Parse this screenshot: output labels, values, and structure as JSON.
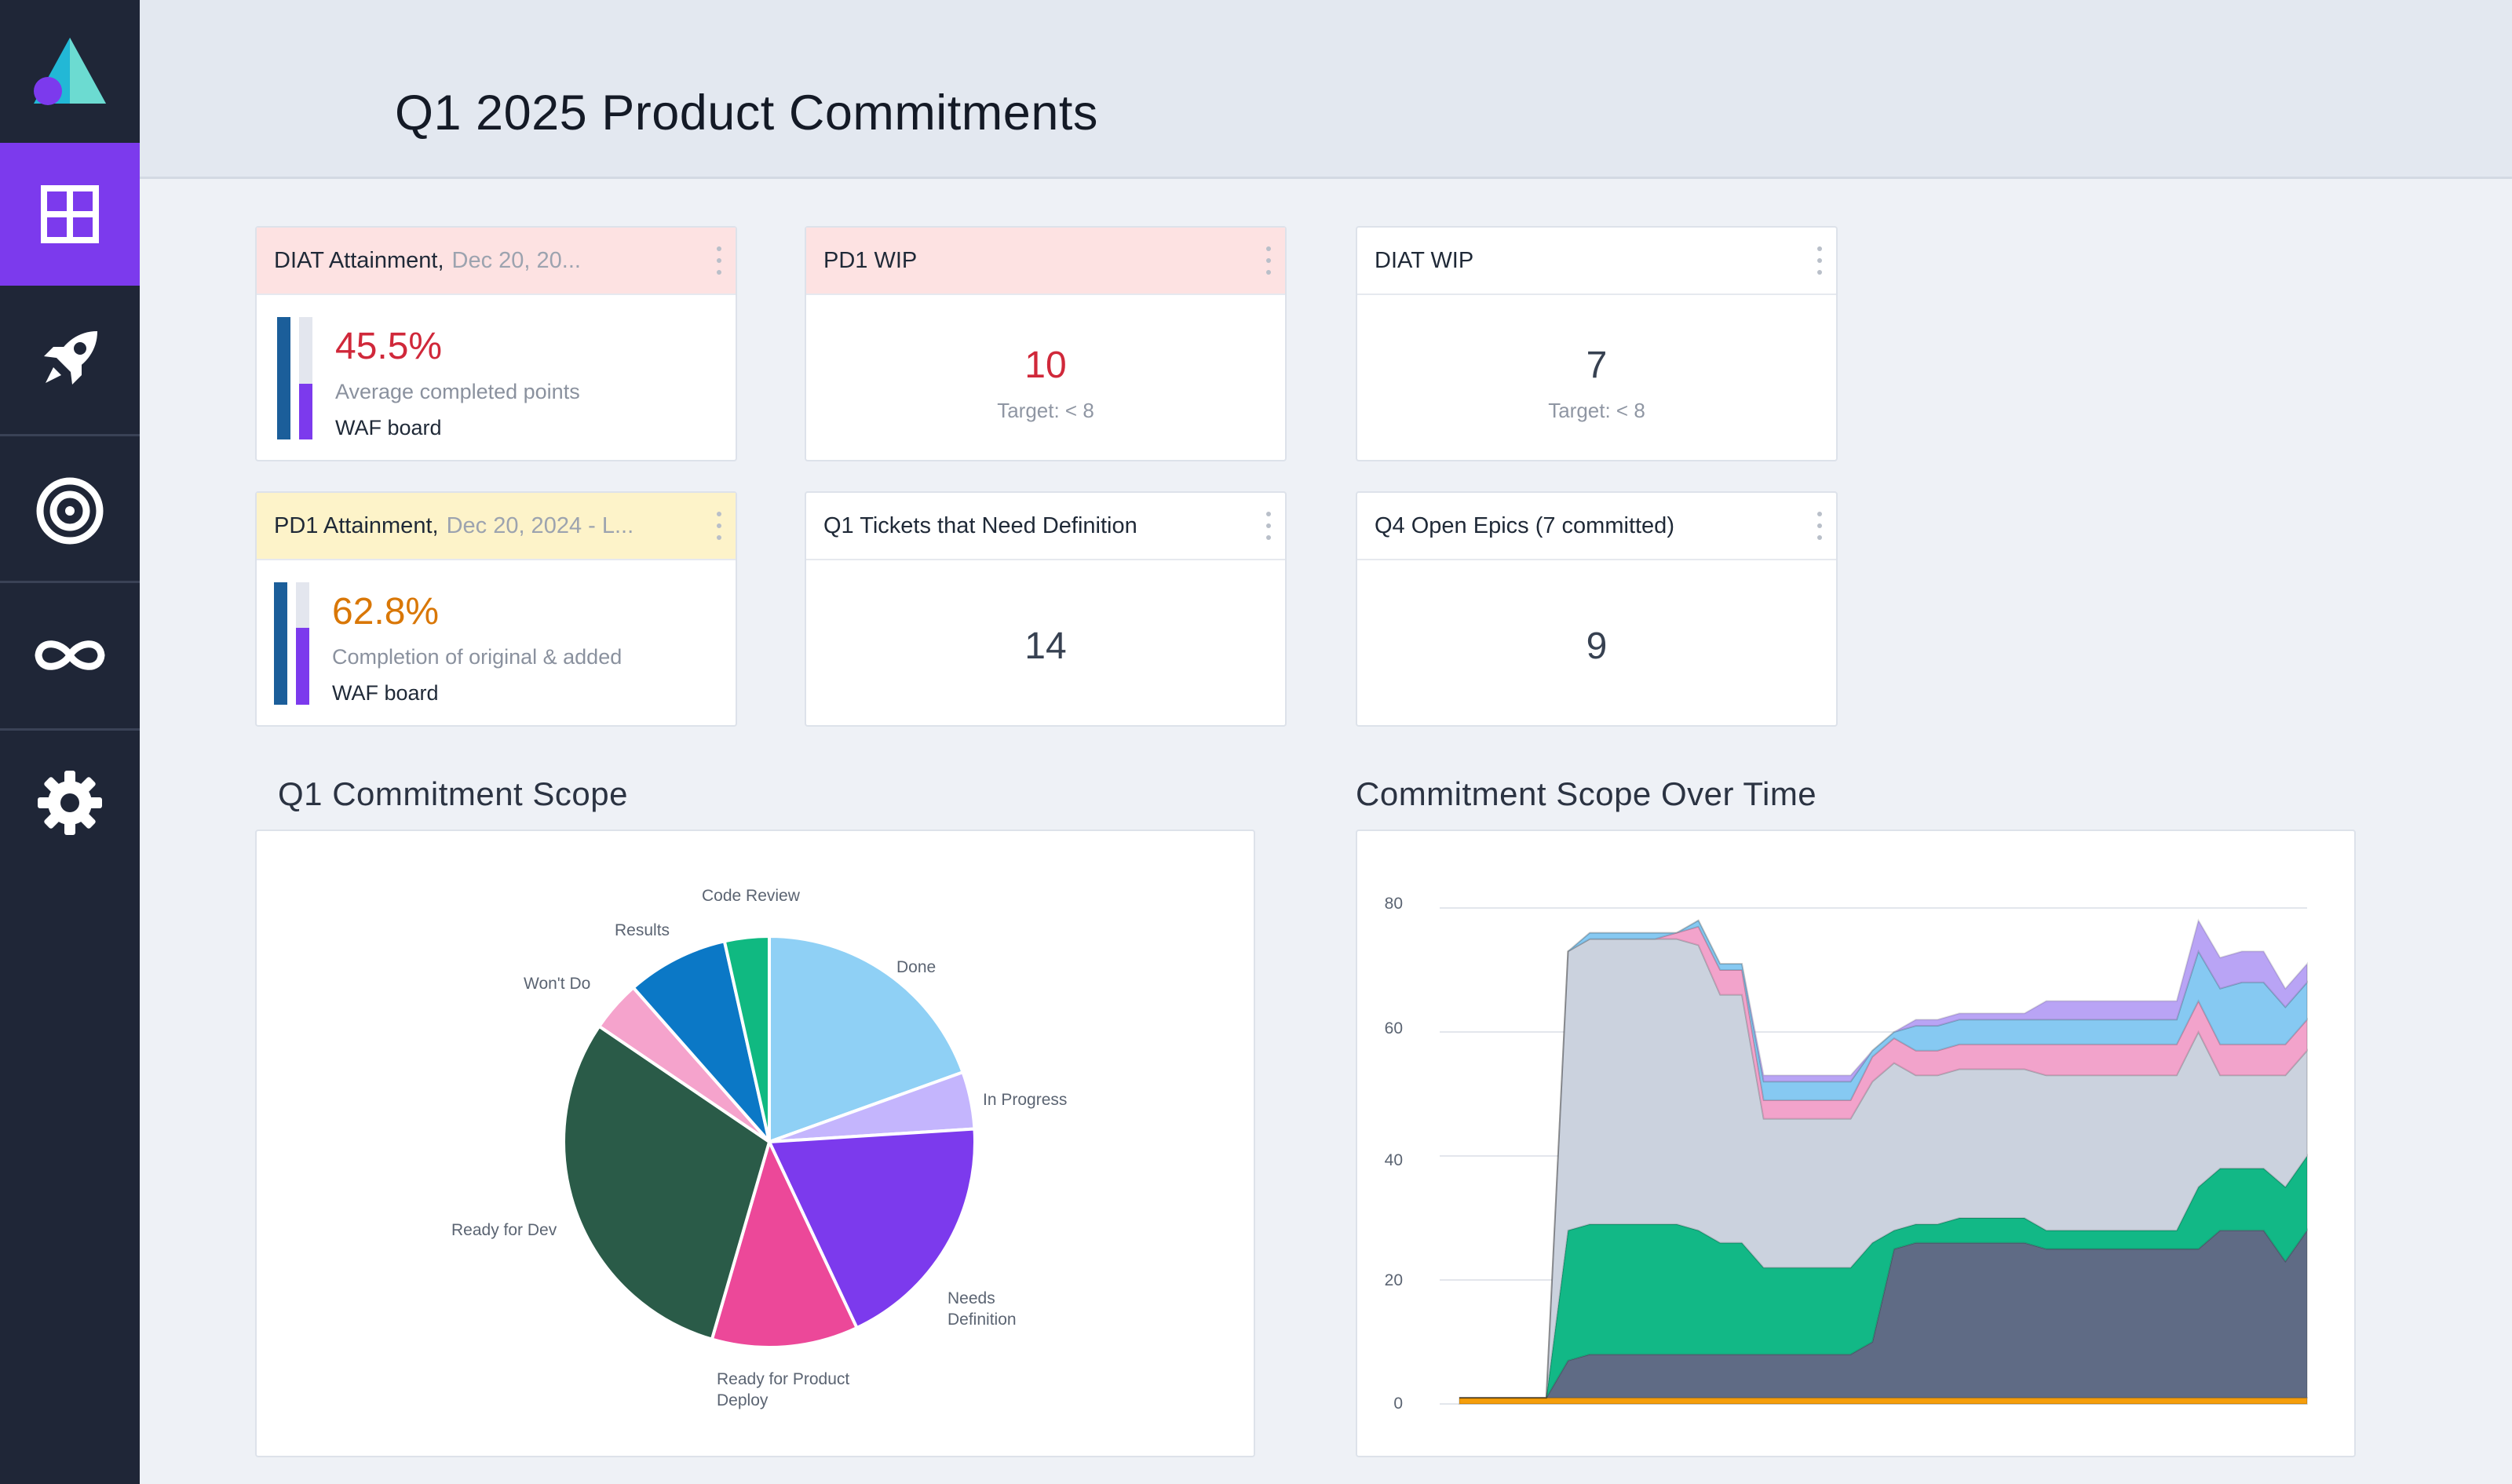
{
  "header": {
    "title": "Q1 2025 Product Commitments"
  },
  "sidebar": {
    "items": [
      {
        "icon": "grid-icon",
        "active": true
      },
      {
        "icon": "rocket-icon",
        "active": false
      },
      {
        "icon": "target-icon",
        "active": false
      },
      {
        "icon": "infinity-icon",
        "active": false
      },
      {
        "icon": "gear-icon",
        "active": false
      }
    ]
  },
  "cards": {
    "diat_attainment": {
      "title": "DIAT Attainment,",
      "subtitle": "Dec 20, 20...",
      "value": "45.5%",
      "description": "Average completed points",
      "board": "WAF board",
      "value_color": "#d0283a",
      "progress_fraction": 0.455
    },
    "pd1_wip": {
      "title": "PD1 WIP",
      "value": "10",
      "target": "Target: < 8",
      "value_color": "#d0283a"
    },
    "diat_wip": {
      "title": "DIAT WIP",
      "value": "7",
      "target": "Target: < 8"
    },
    "pd1_attainment": {
      "title": "PD1 Attainment,",
      "subtitle": "Dec 20, 2024 - L...",
      "value": "62.8%",
      "description": "Completion of original & added",
      "board": "WAF board",
      "value_color": "#d97706",
      "progress_fraction": 0.628
    },
    "q1_tickets": {
      "title": "Q1 Tickets that Need Definition",
      "value": "14"
    },
    "q4_epics": {
      "title": "Q4 Open Epics (7 committed)",
      "value": "9"
    }
  },
  "sections": {
    "pie_title": "Q1 Commitment Scope",
    "area_title": "Commitment Scope Over Time"
  },
  "chart_data": [
    {
      "type": "pie",
      "title": "Q1 Commitment Scope",
      "slices": [
        {
          "label": "Done",
          "value": 19.5,
          "color": "#8fd0f5"
        },
        {
          "label": "In Progress",
          "value": 4.5,
          "color": "#c4b5fd"
        },
        {
          "label": "Needs Definition",
          "value": 19.0,
          "color": "#7c3aed"
        },
        {
          "label": "Ready for Product Deploy",
          "value": 11.5,
          "color": "#ec4899"
        },
        {
          "label": "Ready for Dev",
          "value": 30.0,
          "color": "#2a5b48"
        },
        {
          "label": "Won't Do",
          "value": 4.0,
          "color": "#f5a3cc"
        },
        {
          "label": "Results",
          "value": 8.0,
          "color": "#0b78c6"
        },
        {
          "label": "Code Review",
          "value": 3.5,
          "color": "#10b981"
        }
      ]
    },
    {
      "type": "area",
      "title": "Commitment Scope Over Time",
      "ylim": [
        0,
        80
      ],
      "yticks": [
        0,
        20,
        40,
        60,
        80
      ],
      "grid": true,
      "x": [
        0,
        1,
        2,
        3,
        4,
        5,
        6,
        7,
        8,
        9,
        10,
        11,
        12,
        13,
        14,
        15,
        16,
        17,
        18,
        19,
        20,
        21,
        22,
        23,
        24,
        25,
        26,
        27,
        28,
        29,
        30,
        31,
        32,
        33,
        34,
        35,
        36,
        37,
        38,
        39
      ],
      "series": [
        {
          "color": "#f59e0b",
          "values": [
            1,
            1,
            1,
            1,
            1,
            1,
            1,
            1,
            1,
            1,
            1,
            1,
            1,
            1,
            1,
            1,
            1,
            1,
            1,
            1,
            1,
            1,
            1,
            1,
            1,
            1,
            1,
            1,
            1,
            1,
            1,
            1,
            1,
            1,
            1,
            1,
            1,
            1,
            1,
            1
          ]
        },
        {
          "color": "#5f6b85",
          "values": [
            0,
            0,
            0,
            0,
            0,
            6,
            7,
            7,
            7,
            7,
            7,
            7,
            7,
            7,
            7,
            7,
            7,
            7,
            7,
            9,
            24,
            25,
            25,
            25,
            25,
            25,
            25,
            24,
            24,
            24,
            24,
            24,
            24,
            24,
            24,
            27,
            27,
            27,
            22,
            27
          ]
        },
        {
          "color": "#12b886",
          "values": [
            0,
            0,
            0,
            0,
            0,
            21,
            21,
            21,
            21,
            21,
            21,
            20,
            18,
            18,
            14,
            14,
            14,
            14,
            14,
            16,
            3,
            3,
            3,
            4,
            4,
            4,
            4,
            3,
            3,
            3,
            3,
            3,
            3,
            3,
            10,
            10,
            10,
            10,
            12,
            12
          ]
        },
        {
          "color": "#cbd2de",
          "values": [
            0,
            0,
            0,
            0,
            0,
            45,
            46,
            46,
            46,
            46,
            46,
            46,
            40,
            40,
            24,
            24,
            24,
            24,
            24,
            26,
            27,
            24,
            24,
            24,
            24,
            24,
            24,
            25,
            25,
            25,
            25,
            25,
            25,
            25,
            25,
            15,
            15,
            15,
            18,
            17
          ]
        },
        {
          "color": "#f2a3cb",
          "values": [
            0,
            0,
            0,
            0,
            0,
            0,
            0,
            0,
            0,
            0,
            1,
            3,
            4,
            4,
            3,
            3,
            3,
            3,
            3,
            4,
            4,
            4,
            4,
            4,
            4,
            4,
            4,
            5,
            5,
            5,
            5,
            5,
            5,
            5,
            5,
            5,
            5,
            5,
            5,
            5
          ]
        },
        {
          "color": "#86c9f2",
          "values": [
            0,
            0,
            0,
            0,
            0,
            0,
            1,
            1,
            1,
            1,
            0,
            1,
            1,
            1,
            3,
            3,
            3,
            3,
            3,
            1,
            1,
            4,
            4,
            4,
            4,
            4,
            4,
            4,
            4,
            4,
            4,
            4,
            4,
            4,
            8,
            9,
            10,
            10,
            6,
            6
          ]
        },
        {
          "color": "#b9a4f5",
          "values": [
            0,
            0,
            0,
            0,
            0,
            0,
            0,
            0,
            0,
            0,
            0,
            0,
            0,
            0,
            1,
            1,
            1,
            1,
            1,
            0,
            0,
            1,
            1,
            1,
            1,
            1,
            1,
            3,
            3,
            3,
            3,
            3,
            3,
            3,
            5,
            5,
            5,
            5,
            3,
            3
          ]
        }
      ]
    }
  ]
}
